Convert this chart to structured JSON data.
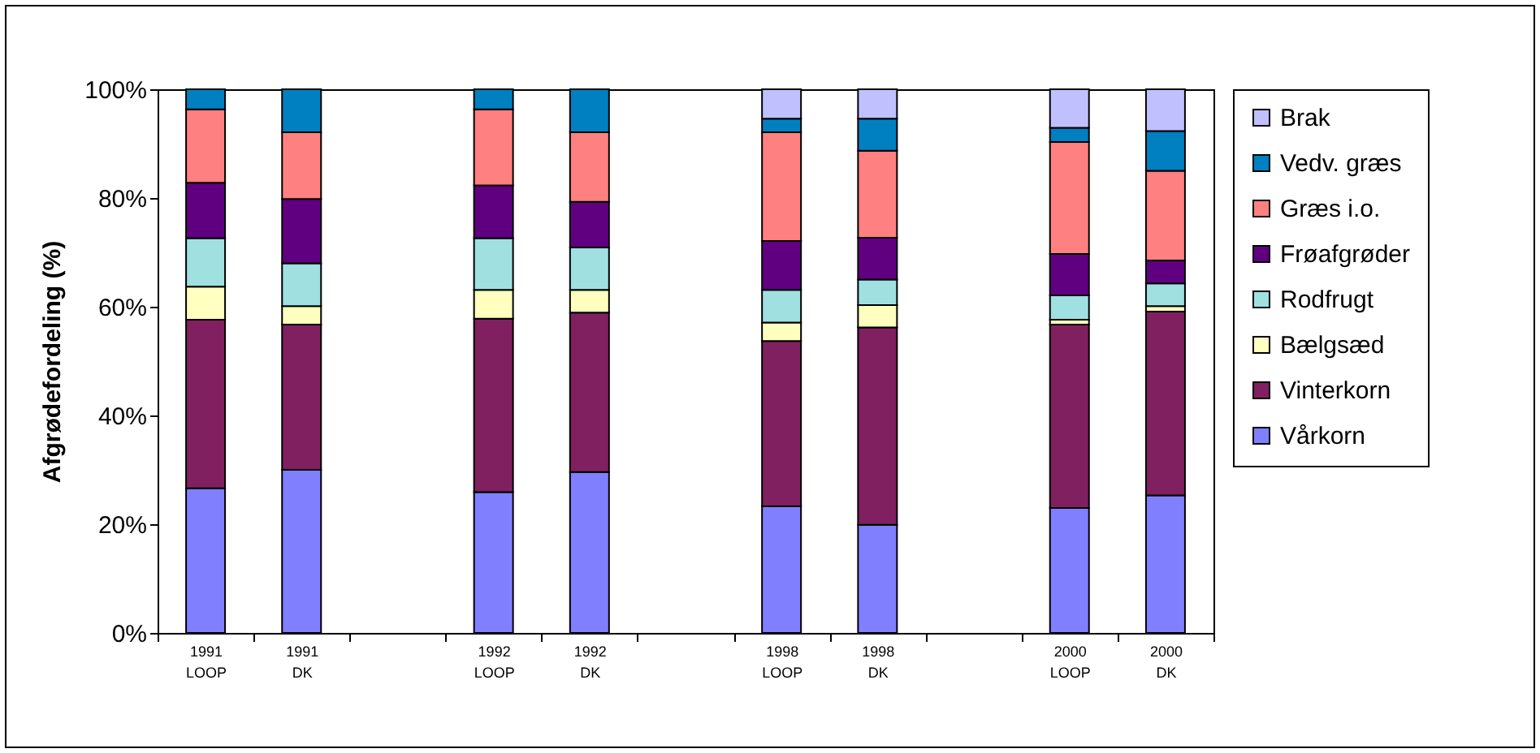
{
  "chart_data": {
    "type": "bar",
    "stacked": true,
    "ylabel": "Afgrødefordeling (%)",
    "categories": [
      "1991 LOOP",
      "1991 DK",
      null,
      "1992 LOOP",
      "1992 DK",
      null,
      "1998 LOOP",
      "1998 DK",
      null,
      "2000 LOOP",
      "2000 DK"
    ],
    "series": [
      {
        "name": "Vårkorn",
        "color": "#8080ff",
        "values": [
          26.6,
          30.0,
          null,
          25.9,
          29.6,
          null,
          23.3,
          19.9,
          null,
          23.0,
          25.3
        ]
      },
      {
        "name": "Vinterkorn",
        "color": "#802060",
        "values": [
          31.0,
          26.7,
          null,
          31.9,
          29.3,
          null,
          30.4,
          36.3,
          null,
          33.7,
          33.8
        ]
      },
      {
        "name": "Bælgsæd",
        "color": "#ffffc0",
        "values": [
          6.1,
          3.4,
          null,
          5.3,
          4.2,
          null,
          3.4,
          4.1,
          null,
          0.9,
          1.0
        ]
      },
      {
        "name": "Rodfrugt",
        "color": "#a0e0e0",
        "values": [
          8.9,
          7.9,
          null,
          9.5,
          7.8,
          null,
          6.0,
          4.7,
          null,
          4.5,
          4.2
        ]
      },
      {
        "name": "Frøafgrøder",
        "color": "#600080",
        "values": [
          10.2,
          11.8,
          null,
          9.7,
          8.4,
          null,
          9.0,
          7.7,
          null,
          7.6,
          4.2
        ]
      },
      {
        "name": "Græs i.o.",
        "color": "#ff8080",
        "values": [
          13.5,
          12.3,
          null,
          14.0,
          12.8,
          null,
          20.0,
          16.0,
          null,
          20.6,
          16.5
        ]
      },
      {
        "name": "Vedv. græs",
        "color": "#0080c0",
        "values": [
          3.7,
          7.9,
          null,
          3.7,
          7.9,
          null,
          2.5,
          5.9,
          null,
          2.6,
          7.3
        ]
      },
      {
        "name": "Brak",
        "color": "#c0c0ff",
        "values": [
          null,
          null,
          null,
          null,
          null,
          null,
          5.4,
          5.4,
          null,
          7.1,
          7.7
        ]
      }
    ],
    "ylim": [
      0,
      100
    ],
    "yticks": [
      {
        "value": 0,
        "label": "0%"
      },
      {
        "value": 20,
        "label": "20%"
      },
      {
        "value": 40,
        "label": "40%"
      },
      {
        "value": 60,
        "label": "60%"
      },
      {
        "value": 80,
        "label": "80%"
      },
      {
        "value": 100,
        "label": "100%"
      }
    ],
    "grid": false,
    "legend": "right"
  }
}
